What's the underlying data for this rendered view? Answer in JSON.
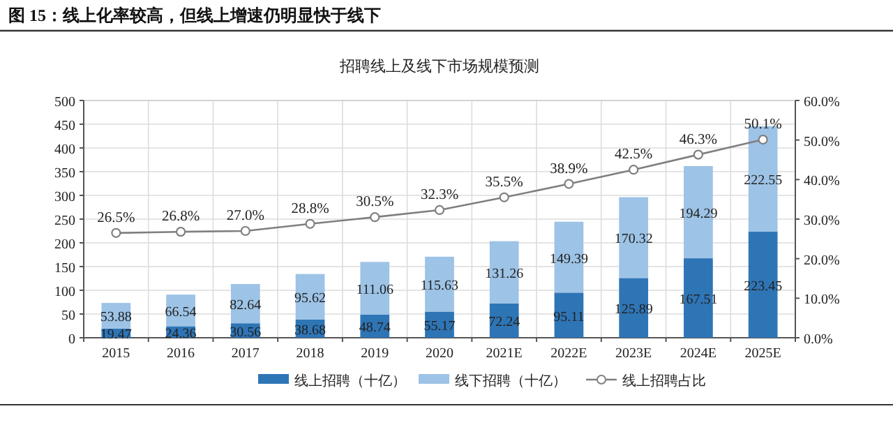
{
  "chart_data": {
    "type": "bar",
    "stacked": true,
    "title": "图 15：线上化率较高，但线上增速仍明显快于线下",
    "subtitle": "招聘线上及线下市场规模预测",
    "categories": [
      "2015",
      "2016",
      "2017",
      "2018",
      "2019",
      "2020",
      "2021E",
      "2022E",
      "2023E",
      "2024E",
      "2025E"
    ],
    "series": [
      {
        "name": "线上招聘（十亿）",
        "color": "#2e75b6",
        "values": [
          19.47,
          24.36,
          30.56,
          38.68,
          48.74,
          55.17,
          72.24,
          95.11,
          125.89,
          167.51,
          223.45
        ],
        "value_labels": [
          "19.47",
          "24.36",
          "30.56",
          "38.68",
          "48.74",
          "55.17",
          "72.24",
          "95.11",
          "125.89",
          "167.51",
          "223.45"
        ]
      },
      {
        "name": "线下招聘（十亿）",
        "color": "#9dc3e6",
        "values": [
          53.88,
          66.54,
          82.64,
          95.62,
          111.06,
          115.63,
          131.26,
          149.39,
          170.32,
          194.29,
          222.55
        ],
        "value_labels": [
          "53.88",
          "66.54",
          "82.64",
          "95.62",
          "111.06",
          "115.63",
          "131.26",
          "149.39",
          "170.32",
          "194.29",
          "222.55"
        ]
      },
      {
        "name": "线上招聘占比",
        "type": "line",
        "axis": "y2",
        "color": "#7f7f7f",
        "marker": "circle",
        "values": [
          26.5,
          26.8,
          27.0,
          28.8,
          30.5,
          32.3,
          35.5,
          38.9,
          42.5,
          46.3,
          50.1
        ],
        "value_labels": [
          "26.5%",
          "26.8%",
          "27.0%",
          "28.8%",
          "30.5%",
          "32.3%",
          "35.5%",
          "38.9%",
          "42.5%",
          "46.3%",
          "50.1%"
        ]
      }
    ],
    "ylim": [
      0,
      500
    ],
    "yticks": [
      0,
      50,
      100,
      150,
      200,
      250,
      300,
      350,
      400,
      450,
      500
    ],
    "y2lim": [
      0,
      60
    ],
    "y2ticks": [
      {
        "value": 0,
        "label": "0.0%"
      },
      {
        "value": 10,
        "label": "10.0%"
      },
      {
        "value": 20,
        "label": "20.0%"
      },
      {
        "value": 30,
        "label": "30.0%"
      },
      {
        "value": 40,
        "label": "40.0%"
      },
      {
        "value": 50,
        "label": "50.0%"
      },
      {
        "value": 60,
        "label": "60.0%"
      }
    ],
    "grid": true,
    "legend": "bottom"
  }
}
